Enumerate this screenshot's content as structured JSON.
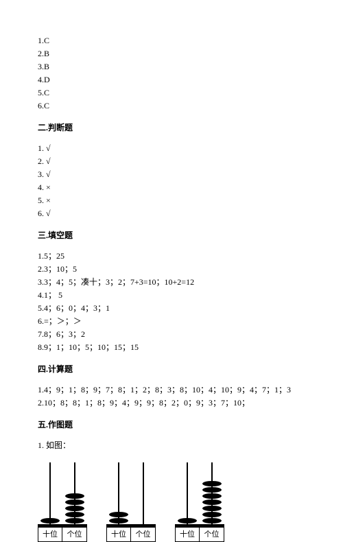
{
  "section1_answers": [
    "1.C",
    "2.B",
    "3.B",
    "4.D",
    "5.C",
    "6.C"
  ],
  "section2": {
    "title": "二.判断题",
    "answers": [
      "1. √",
      "2. √",
      "3. √",
      "4. ×",
      "5. ×",
      "6. √"
    ]
  },
  "section3": {
    "title": "三.填空题",
    "answers": [
      "1.5；25",
      "2.3；10；5",
      "3.3；4；5；凑十；3；2；7+3=10；10+2=12",
      "4.1；  5",
      "5.4；6；0；4；3；1",
      "6.=；＞；＞",
      "7.8；6；3；2",
      "8.9；1；10；5；10；15；15"
    ]
  },
  "section4": {
    "title": "四.计算题",
    "answers": [
      "1.4；9；1；8；9；7；8；1；2；8；3；8；10；4；10；9；4；7；1；3",
      "2.10；8；8；1；8；9；4；9；9；8；2；0；9；3；7；10；"
    ]
  },
  "section5": {
    "title": "五.作图题",
    "item": "1. 如图："
  },
  "abacus": {
    "label_tens": "十位",
    "label_ones": "个位",
    "items": [
      {
        "tens": 1,
        "ones": 5
      },
      {
        "tens": 2,
        "ones": 0
      },
      {
        "tens": 1,
        "ones": 7
      }
    ]
  }
}
